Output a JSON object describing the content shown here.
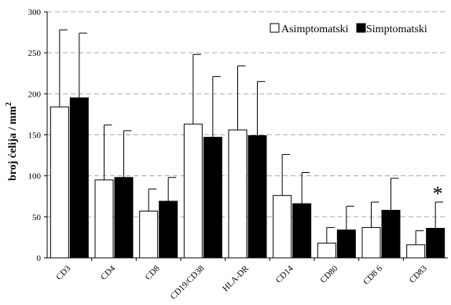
{
  "chart_data": {
    "type": "bar",
    "title": "",
    "xlabel": "",
    "ylabel": "broj ćelija / mm",
    "ylabel_superscript": "2",
    "ylim": [
      0,
      300
    ],
    "yticks": [
      0,
      50,
      100,
      150,
      200,
      250,
      300
    ],
    "grid": "horizontal dashed",
    "legend_position": "top-right",
    "categories": [
      "CD3",
      "CD4",
      "CD8",
      "CD19/CD38",
      "HLA-DR",
      "CD14",
      "CD80",
      "CD8 6",
      "CD83"
    ],
    "series": [
      {
        "name": "Asimptomatski",
        "color": "#ffffff",
        "values": [
          184,
          95,
          57,
          163,
          156,
          76,
          18,
          37,
          16
        ],
        "error": [
          94,
          67,
          27,
          85,
          78,
          50,
          19,
          31,
          17
        ]
      },
      {
        "name": "Simptomatski",
        "color": "#000000",
        "values": [
          195,
          98,
          69,
          147,
          149,
          66,
          34,
          58,
          36
        ],
        "error": [
          79,
          57,
          29,
          74,
          66,
          38,
          29,
          39,
          32
        ]
      }
    ],
    "annotations": [
      {
        "text": "*",
        "category": "CD83",
        "series": "Simptomatski"
      }
    ]
  }
}
